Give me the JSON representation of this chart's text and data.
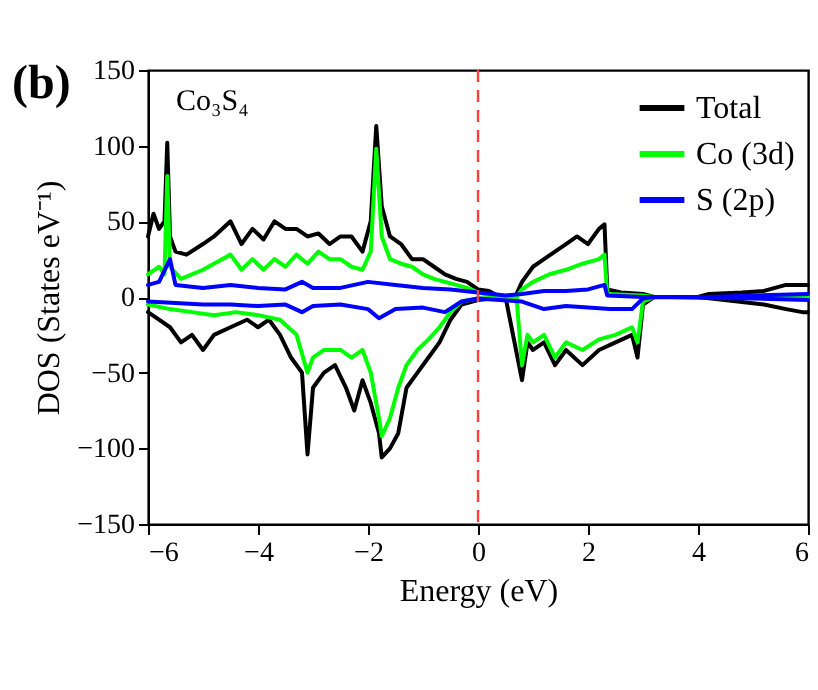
{
  "chart_data": {
    "type": "line",
    "xlabel": "Energy (eV)",
    "ylabel": "DOS (States  eV⁻¹)",
    "annotations": [
      "(b)",
      "Co₃S₄"
    ],
    "xlim": [
      -6,
      6
    ],
    "xticks": [
      -6,
      -4,
      -2,
      0,
      2,
      4,
      6
    ],
    "ylim": [
      -150,
      150
    ],
    "yticks": [
      -150,
      -100,
      -50,
      0,
      50,
      100,
      150
    ],
    "grid": false,
    "legend": "top right",
    "line_style": "solid",
    "marker": "none",
    "ref_lines": [
      {
        "axis": "x",
        "value": 0,
        "color": "#ff4040",
        "line_style": "dashed"
      }
    ],
    "series": [
      {
        "name": "Total",
        "color": "#000000",
        "x": [
          -6,
          -5.9,
          -5.8,
          -5.7,
          -5.65,
          -5.6,
          -5.5,
          -5.3,
          -5.0,
          -4.8,
          -4.5,
          -4.3,
          -4.1,
          -3.9,
          -3.7,
          -3.5,
          -3.3,
          -3.1,
          -2.9,
          -2.7,
          -2.5,
          -2.3,
          -2.1,
          -1.95,
          -1.85,
          -1.75,
          -1.6,
          -1.4,
          -1.2,
          -1.0,
          -0.8,
          -0.6,
          -0.4,
          -0.2,
          0,
          0.2,
          0.4,
          0.6,
          0.7,
          0.8,
          1.0,
          1.2,
          1.4,
          1.6,
          1.8,
          2.0,
          2.2,
          2.3,
          2.35,
          2.6,
          3.0,
          3.2,
          4.0,
          4.2,
          4.8,
          5.2,
          5.6,
          6.0
        ],
        "values": [
          40,
          55,
          45,
          50,
          102,
          40,
          30,
          28,
          35,
          40,
          50,
          35,
          45,
          38,
          50,
          45,
          45,
          40,
          42,
          35,
          40,
          40,
          30,
          50,
          113,
          60,
          40,
          35,
          25,
          25,
          20,
          15,
          12,
          10,
          5,
          4,
          0,
          0,
          2,
          10,
          20,
          25,
          30,
          35,
          40,
          35,
          45,
          48,
          5,
          3,
          2,
          0,
          0,
          2,
          3,
          4,
          8,
          8
        ]
      },
      {
        "color": "#000000",
        "x": [
          -6,
          -5.8,
          -5.6,
          -5.4,
          -5.2,
          -5.0,
          -4.8,
          -4.5,
          -4.2,
          -4.0,
          -3.8,
          -3.6,
          -3.4,
          -3.2,
          -3.1,
          -3.0,
          -2.8,
          -2.6,
          -2.4,
          -2.25,
          -2.1,
          -1.95,
          -1.8,
          -1.75,
          -1.6,
          -1.45,
          -1.3,
          -1.1,
          -0.9,
          -0.7,
          -0.5,
          -0.3,
          0,
          0.5,
          0.8,
          0.9,
          1.0,
          1.2,
          1.4,
          1.6,
          1.9,
          2.2,
          2.5,
          2.8,
          2.9,
          3.0,
          3.2,
          4,
          5.2,
          5.6,
          5.9,
          6
        ],
        "values": [
          -10,
          -15,
          -20,
          -30,
          -25,
          -35,
          -25,
          -20,
          -15,
          -20,
          -15,
          -25,
          -40,
          -50,
          -104,
          -60,
          -50,
          -45,
          -60,
          -75,
          -55,
          -70,
          -90,
          -106,
          -100,
          -90,
          -60,
          -50,
          -40,
          -30,
          -15,
          -5,
          -2,
          0,
          -55,
          -30,
          -35,
          -30,
          -45,
          -35,
          -45,
          -35,
          -30,
          -25,
          -40,
          -5,
          0,
          0,
          -5,
          -8,
          -10,
          -10
        ]
      },
      {
        "name": "Co (3d)",
        "color": "#00ff00",
        "x": [
          -6,
          -5.8,
          -5.7,
          -5.65,
          -5.6,
          -5.4,
          -5,
          -4.8,
          -4.5,
          -4.3,
          -4.1,
          -3.9,
          -3.7,
          -3.5,
          -3.3,
          -3.1,
          -2.9,
          -2.7,
          -2.5,
          -2.3,
          -2.1,
          -1.95,
          -1.85,
          -1.75,
          -1.6,
          -1.4,
          -1.2,
          -1.0,
          -0.8,
          -0.6,
          -0.4,
          -0.2,
          0,
          0.4,
          0.7,
          0.8,
          1.0,
          1.3,
          1.6,
          1.9,
          2.2,
          2.3,
          2.35,
          3,
          3.2,
          6
        ],
        "values": [
          15,
          20,
          15,
          80,
          20,
          12,
          18,
          22,
          28,
          18,
          25,
          18,
          25,
          20,
          28,
          22,
          30,
          25,
          25,
          20,
          18,
          30,
          98,
          40,
          25,
          22,
          20,
          15,
          12,
          10,
          8,
          6,
          3,
          0,
          0,
          5,
          10,
          15,
          18,
          22,
          25,
          28,
          2,
          1,
          0,
          0
        ]
      },
      {
        "color": "#00ff00",
        "x": [
          -6,
          -5.6,
          -5.2,
          -4.8,
          -4.4,
          -4,
          -3.6,
          -3.3,
          -3.1,
          -3.0,
          -2.8,
          -2.5,
          -2.3,
          -2.1,
          -1.95,
          -1.8,
          -1.75,
          -1.6,
          -1.45,
          -1.3,
          -1.1,
          -0.9,
          -0.7,
          -0.5,
          -0.3,
          0,
          0.7,
          0.8,
          0.9,
          1.0,
          1.2,
          1.4,
          1.6,
          1.9,
          2.2,
          2.5,
          2.8,
          2.9,
          3.0,
          3.2,
          6
        ],
        "values": [
          -5,
          -8,
          -10,
          -12,
          -10,
          -12,
          -15,
          -25,
          -50,
          -40,
          -35,
          -35,
          -40,
          -35,
          -50,
          -80,
          -92,
          -80,
          -60,
          -45,
          -35,
          -28,
          -20,
          -10,
          -3,
          -1,
          0,
          -45,
          -25,
          -30,
          -25,
          -40,
          -30,
          -35,
          -28,
          -25,
          -20,
          -30,
          -3,
          0,
          0
        ]
      },
      {
        "name": "S (2p)",
        "color": "#0000ff",
        "x": [
          -6,
          -5.8,
          -5.6,
          -5.5,
          -5,
          -4.5,
          -4,
          -3.5,
          -3.2,
          -3,
          -2.5,
          -2,
          -1.5,
          -1,
          -0.5,
          0,
          0.5,
          0.8,
          1.2,
          1.6,
          2,
          2.3,
          2.35,
          3,
          4.2,
          5,
          6
        ],
        "values": [
          8,
          10,
          25,
          8,
          6,
          8,
          6,
          5,
          10,
          6,
          6,
          10,
          8,
          6,
          5,
          3,
          1,
          2,
          4,
          4,
          5,
          8,
          1,
          0,
          0,
          1,
          2
        ]
      },
      {
        "color": "#0000ff",
        "x": [
          -6,
          -5.5,
          -5,
          -4.5,
          -4,
          -3.5,
          -3.2,
          -3,
          -2.5,
          -2,
          -1.8,
          -1.5,
          -1,
          -0.6,
          -0.3,
          0,
          0.8,
          1.2,
          1.6,
          2,
          2.4,
          2.8,
          3,
          3.2,
          5,
          6
        ],
        "values": [
          -3,
          -4,
          -5,
          -5,
          -6,
          -5,
          -10,
          -6,
          -5,
          -8,
          -14,
          -8,
          -7,
          -10,
          -3,
          -1,
          -3,
          -8,
          -6,
          -7,
          -8,
          -8,
          -1,
          0,
          -1,
          -2
        ]
      }
    ]
  }
}
